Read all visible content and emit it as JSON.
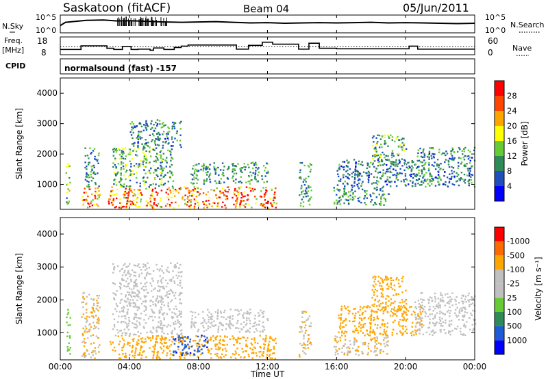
{
  "header": {
    "title": "Saskatoon (fitACF)",
    "beam": "Beam 04",
    "date": "05/Jun/2011"
  },
  "top_panels": {
    "nsky_label": "N.Sky",
    "nsky_ticks": [
      "10^5",
      "10^0"
    ],
    "nsearch_label": "N.Search",
    "nsearch_ticks": [
      "10^5",
      "10^0"
    ],
    "freq_label": "Freq.",
    "freq_unit": "[MHz]",
    "freq_ticks": [
      18,
      8
    ],
    "nave_label": "Nave",
    "nave_ticks": [
      60,
      0
    ],
    "cpid_label": "CPID",
    "cpid_text": "normalsound (fast) -157"
  },
  "time_axis": {
    "label": "Time UT",
    "ticks": [
      "00:00",
      "04:00",
      "08:00",
      "12:00",
      "16:00",
      "20:00",
      "00:00"
    ],
    "range_hours": [
      0,
      24
    ]
  },
  "colors": {
    "frame": "#000000",
    "power_scale": [
      "#0000ff",
      "#1f4fbf",
      "#2e8b57",
      "#66cc33",
      "#ffff00",
      "#ffa500",
      "#ff4500",
      "#ff0000"
    ],
    "velocity_scale": [
      "#0000ff",
      "#1e5bd6",
      "#2e8b57",
      "#66cc33",
      "#c0c0c0",
      "#c0c0c0",
      "#ffa500",
      "#ff6a00",
      "#ff0000"
    ]
  },
  "chart_data": [
    {
      "type": "line",
      "panel": "N.Sky / N.Search",
      "x_unit": "hours UT",
      "x": [
        0,
        0.3,
        1.5,
        2.5,
        3.3,
        4.0,
        5.0,
        6.0,
        7.0,
        8.0,
        9.0,
        10.0,
        11.0,
        12.0,
        13.0,
        14.0,
        15.0,
        16.0,
        17.0,
        18.0,
        19.0,
        20.0,
        21.0,
        22.0,
        23.0,
        24.0
      ],
      "series": [
        {
          "values": [
            2.0,
            3.0,
            3.6,
            3.7,
            3.4,
            3.5,
            3.3,
            3.1,
            3.0,
            3.1,
            3.2,
            3.0,
            2.8,
            2.9,
            2.7,
            2.8,
            2.9,
            2.8,
            2.9,
            3.0,
            2.8,
            2.9,
            2.8,
            2.7,
            2.6,
            2.7
          ]
        }
      ],
      "ylim": [
        0,
        5
      ]
    },
    {
      "type": "line",
      "panel": "Freq. / Nave",
      "x_unit": "hours UT",
      "y_unit": "MHz",
      "segments": [
        [
          0,
          0.5,
          10.8
        ],
        [
          0.5,
          1.2,
          10.8
        ],
        [
          1.2,
          1.5,
          13.0
        ],
        [
          1.5,
          2.7,
          13.0
        ],
        [
          2.7,
          3.1,
          11.5
        ],
        [
          3.1,
          3.6,
          10.8
        ],
        [
          3.6,
          4.1,
          12.6
        ],
        [
          4.1,
          4.5,
          10.8
        ],
        [
          4.5,
          5.2,
          11.0
        ],
        [
          5.2,
          5.4,
          10.3
        ],
        [
          5.4,
          6.0,
          11.7
        ],
        [
          6.0,
          6.6,
          10.8
        ],
        [
          6.6,
          7.0,
          12.0
        ],
        [
          7.0,
          7.4,
          12.8
        ],
        [
          7.4,
          10.2,
          13.5
        ],
        [
          10.2,
          10.9,
          11.0
        ],
        [
          10.9,
          11.7,
          13.3
        ],
        [
          11.7,
          12.3,
          15.2
        ],
        [
          12.3,
          13.8,
          14.0
        ],
        [
          13.8,
          14.4,
          11.0
        ],
        [
          14.4,
          15.0,
          14.6
        ],
        [
          15.0,
          16.0,
          11.5
        ],
        [
          16.0,
          20.2,
          11.2
        ],
        [
          20.2,
          20.7,
          12.8
        ],
        [
          20.7,
          24.0,
          11.0
        ]
      ],
      "ylim": [
        8,
        18
      ],
      "nave_ylim": [
        0,
        60
      ]
    },
    {
      "type": "heatmap",
      "panel": "Power",
      "ylabel": "Slant Range [km]",
      "colorbar_label": "Power [dB]",
      "yticks": [
        1000,
        2000,
        3000,
        4000
      ],
      "ylim": [
        180,
        4500
      ],
      "colorbar_ticks": [
        4,
        8,
        12,
        16,
        20,
        24,
        28
      ],
      "colorbar_range": [
        0,
        32
      ],
      "gaps_hours": [
        [
          0.55,
          1.2
        ],
        [
          2.25,
          2.75
        ],
        [
          12.5,
          13.75
        ],
        [
          14.5,
          15.8
        ]
      ],
      "regions": [
        {
          "t": [
            0.3,
            0.55
          ],
          "r": [
            300,
            1700
          ],
          "value": 14
        },
        {
          "t": [
            1.2,
            2.25
          ],
          "r": [
            200,
            900
          ],
          "value": 24
        },
        {
          "t": [
            1.4,
            2.2
          ],
          "r": [
            900,
            2200
          ],
          "value": 10
        },
        {
          "t": [
            2.75,
            12.5
          ],
          "r": [
            200,
            900
          ],
          "value": 24
        },
        {
          "t": [
            3.0,
            6.5
          ],
          "r": [
            900,
            2200
          ],
          "value": 12
        },
        {
          "t": [
            4.0,
            7.0
          ],
          "r": [
            2200,
            3100
          ],
          "value": 9
        },
        {
          "t": [
            7.5,
            12.0
          ],
          "r": [
            1000,
            1700
          ],
          "value": 10
        },
        {
          "t": [
            13.8,
            14.5
          ],
          "r": [
            250,
            1700
          ],
          "value": 10
        },
        {
          "t": [
            15.8,
            19.0
          ],
          "r": [
            300,
            900
          ],
          "value": 10
        },
        {
          "t": [
            16.0,
            21.0
          ],
          "r": [
            900,
            1800
          ],
          "value": 8
        },
        {
          "t": [
            18.0,
            20.0
          ],
          "r": [
            1600,
            2600
          ],
          "value": 12
        },
        {
          "t": [
            20.5,
            24.0
          ],
          "r": [
            900,
            2200
          ],
          "value": 9
        }
      ]
    },
    {
      "type": "heatmap",
      "panel": "Velocity",
      "ylabel": "Slant Range [km]",
      "colorbar_label": "Velocity [m s⁻¹]",
      "yticks": [
        1000,
        2000,
        3000,
        4000
      ],
      "ylim": [
        180,
        4500
      ],
      "colorbar_ticks": [
        1000,
        500,
        100,
        25,
        -25,
        -100,
        -500,
        -1000
      ],
      "gaps_hours": [
        [
          0.55,
          1.2
        ],
        [
          2.25,
          2.75
        ],
        [
          12.5,
          13.75
        ],
        [
          14.5,
          15.8
        ]
      ],
      "regions": [
        {
          "t": [
            0.3,
            0.55
          ],
          "r": [
            300,
            1700
          ],
          "value": 50
        },
        {
          "t": [
            1.2,
            2.25
          ],
          "r": [
            200,
            2200
          ],
          "value": -100
        },
        {
          "t": [
            2.75,
            12.5
          ],
          "r": [
            200,
            900
          ],
          "value": -300
        },
        {
          "t": [
            3.0,
            7.0
          ],
          "r": [
            900,
            3100
          ],
          "value": 0
        },
        {
          "t": [
            6.5,
            8.5
          ],
          "r": [
            300,
            900
          ],
          "value": 800
        },
        {
          "t": [
            7.5,
            12.0
          ],
          "r": [
            1000,
            1700
          ],
          "value": 0
        },
        {
          "t": [
            13.8,
            14.5
          ],
          "r": [
            250,
            1700
          ],
          "value": -100
        },
        {
          "t": [
            15.8,
            19.0
          ],
          "r": [
            300,
            900
          ],
          "value": -100
        },
        {
          "t": [
            16.0,
            21.0
          ],
          "r": [
            900,
            1800
          ],
          "value": -200
        },
        {
          "t": [
            18.0,
            20.0
          ],
          "r": [
            1600,
            2700
          ],
          "value": -300
        },
        {
          "t": [
            20.5,
            24.0
          ],
          "r": [
            900,
            2200
          ],
          "value": 0
        }
      ]
    }
  ]
}
